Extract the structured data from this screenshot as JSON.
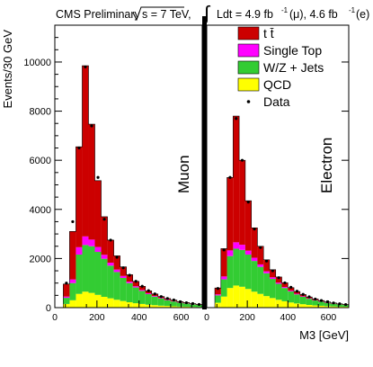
{
  "header": {
    "prefix": "CMS Preliminary ",
    "sqrt_s": "s = 7 TeV,",
    "lumi_text": "Ldt = 4.9 fb",
    "lumi_mu": "(μ), 4.6 fb",
    "lumi_e": "(e)",
    "lumi_exp": "-1"
  },
  "chart_data": {
    "type": "bar",
    "stacked": true,
    "xlabel": "M3 [GeV]",
    "ylabel": "Events/30 GeV",
    "ylim": [
      0,
      11500
    ],
    "y_ticks": [
      "0",
      "2000",
      "4000",
      "6000",
      "8000",
      "10000"
    ],
    "panels": [
      {
        "name": "Muon",
        "x_range": [
          0,
          700
        ],
        "x_ticks": [
          "0",
          "200",
          "400",
          "600"
        ],
        "bin_edges": [
          40,
          70,
          100,
          130,
          160,
          190,
          220,
          250,
          280,
          310,
          340,
          370,
          400,
          430,
          460,
          490,
          520,
          550,
          580,
          610,
          640,
          670,
          700
        ],
        "series": [
          {
            "name": "QCD",
            "color": "#ffff00",
            "values": [
              150,
              300,
              560,
              650,
              600,
              520,
              440,
              380,
              320,
              270,
              220,
              180,
              150,
              120,
              100,
              80,
              70,
              55,
              45,
              40,
              30,
              25
            ]
          },
          {
            "name": "W/Z + Jets",
            "color": "#33cc33",
            "values": [
              250,
              700,
              1600,
              1900,
              1900,
              1750,
              1550,
              1330,
              1130,
              940,
              780,
              640,
              530,
              430,
              350,
              290,
              230,
              195,
              155,
              130,
              105,
              85
            ]
          },
          {
            "name": "Single Top",
            "color": "#ff00ff",
            "values": [
              50,
              150,
              300,
              350,
              270,
              200,
              160,
              120,
              100,
              80,
              60,
              50,
              40,
              35,
              28,
              22,
              18,
              15,
              12,
              10,
              8,
              6
            ]
          },
          {
            "name": "t t̄",
            "color": "#cc0000",
            "values": [
              510,
              1950,
              4090,
              6950,
              4700,
              2700,
              1550,
              920,
              560,
              370,
              280,
              200,
              150,
              100,
              80,
              60,
              50,
              40,
              30,
              25,
              20,
              15
            ]
          }
        ],
        "data_points": [
          1000,
          3500,
          6500,
          9800,
          7400,
          5300,
          3600,
          2750,
          2050,
          1620,
          1320,
          1070,
          870,
          690,
          560,
          450,
          370,
          310,
          240,
          200,
          165,
          130
        ]
      },
      {
        "name": "Electron",
        "x_range": [
          0,
          700
        ],
        "x_ticks": [
          "0",
          "200",
          "400",
          "600"
        ],
        "bin_edges": [
          40,
          70,
          100,
          130,
          160,
          190,
          220,
          250,
          280,
          310,
          340,
          370,
          400,
          430,
          460,
          490,
          520,
          550,
          580,
          610,
          640,
          670,
          700
        ],
        "series": [
          {
            "name": "QCD",
            "color": "#ffff00",
            "values": [
              200,
              450,
              800,
              900,
              850,
              760,
              650,
              560,
              470,
              390,
              320,
              260,
              210,
              170,
              140,
              110,
              90,
              75,
              60,
              50,
              40,
              35
            ]
          },
          {
            "name": "W/Z + Jets",
            "color": "#33cc33",
            "values": [
              300,
              700,
              1300,
              1500,
              1500,
              1400,
              1250,
              1100,
              930,
              780,
              650,
              540,
              450,
              370,
              300,
              250,
              200,
              165,
              135,
              110,
              90,
              75
            ]
          },
          {
            "name": "Single Top",
            "color": "#ff00ff",
            "values": [
              40,
              120,
              230,
              260,
              210,
              160,
              130,
              100,
              80,
              65,
              50,
              40,
              33,
              27,
              22,
              18,
              14,
              12,
              10,
              8,
              6,
              5
            ]
          },
          {
            "name": "t t̄",
            "color": "#cc0000",
            "values": [
              260,
              1130,
              2970,
              5140,
              3440,
              2030,
              1220,
              740,
              470,
              310,
              230,
              170,
              120,
              90,
              70,
              55,
              45,
              35,
              28,
              22,
              18,
              14
            ]
          }
        ],
        "data_points": [
          780,
          2350,
          5300,
          7700,
          6000,
          4300,
          3200,
          2450,
          1900,
          1500,
          1220,
          1010,
          830,
          670,
          540,
          440,
          350,
          290,
          240,
          190,
          155,
          125
        ]
      }
    ],
    "legend": [
      {
        "label": "t t̄",
        "color": "#cc0000",
        "kind": "box"
      },
      {
        "label": "Single Top",
        "color": "#ff00ff",
        "kind": "box"
      },
      {
        "label": "W/Z + Jets",
        "color": "#33cc33",
        "kind": "box"
      },
      {
        "label": "QCD",
        "color": "#ffff00",
        "kind": "box"
      },
      {
        "label": "Data",
        "color": "#000000",
        "kind": "dot"
      }
    ],
    "legend_position": "top-right"
  }
}
